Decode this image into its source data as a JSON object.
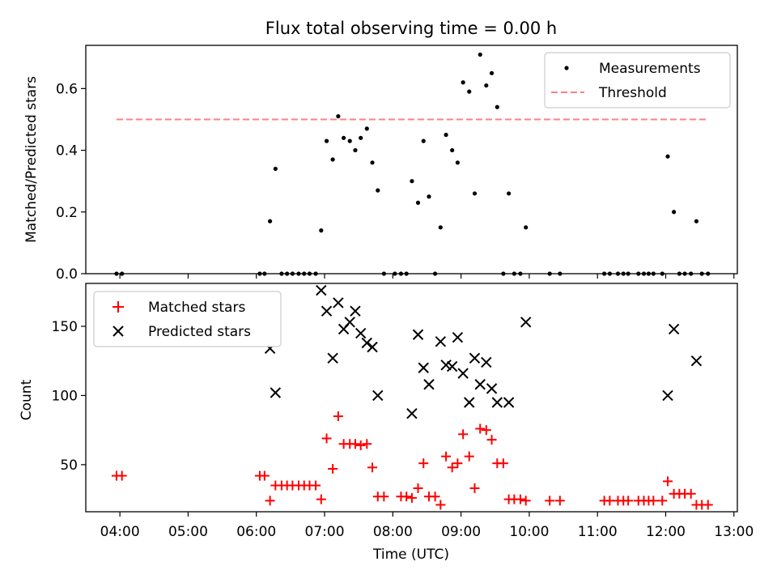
{
  "chart_data": [
    {
      "type": "scatter",
      "title": "Flux total observing time = 0.00 h",
      "xlabel": "",
      "ylabel": "Matched/Predicted stars",
      "xlim": [
        3.5,
        13.05
      ],
      "ylim": [
        0,
        0.74
      ],
      "yticks": [
        0.0,
        0.2,
        0.4,
        0.6
      ],
      "ytick_labels": [
        "0.0",
        "0.2",
        "0.4",
        "0.6"
      ],
      "legend_position": "top-right",
      "series": [
        {
          "name": "Measurements",
          "marker": "dot",
          "color": "#000000",
          "points": [
            [
              3.95,
              0
            ],
            [
              4.03,
              0
            ],
            [
              6.05,
              0
            ],
            [
              6.12,
              0
            ],
            [
              6.2,
              0.17
            ],
            [
              6.28,
              0.34
            ],
            [
              6.37,
              0
            ],
            [
              6.45,
              0
            ],
            [
              6.53,
              0
            ],
            [
              6.62,
              0
            ],
            [
              6.7,
              0
            ],
            [
              6.78,
              0
            ],
            [
              6.87,
              0
            ],
            [
              6.95,
              0.14
            ],
            [
              7.03,
              0.43
            ],
            [
              7.12,
              0.37
            ],
            [
              7.2,
              0.51
            ],
            [
              7.28,
              0.44
            ],
            [
              7.37,
              0.43
            ],
            [
              7.45,
              0.4
            ],
            [
              7.53,
              0.44
            ],
            [
              7.62,
              0.47
            ],
            [
              7.7,
              0.36
            ],
            [
              7.78,
              0.27
            ],
            [
              7.87,
              0
            ],
            [
              8.03,
              0
            ],
            [
              8.12,
              0
            ],
            [
              8.2,
              0
            ],
            [
              8.28,
              0.3
            ],
            [
              8.37,
              0.23
            ],
            [
              8.45,
              0.43
            ],
            [
              8.53,
              0.25
            ],
            [
              8.62,
              0
            ],
            [
              8.7,
              0.15
            ],
            [
              8.78,
              0.45
            ],
            [
              8.87,
              0.4
            ],
            [
              8.95,
              0.36
            ],
            [
              9.03,
              0.62
            ],
            [
              9.12,
              0.59
            ],
            [
              9.2,
              0.26
            ],
            [
              9.28,
              0.71
            ],
            [
              9.37,
              0.61
            ],
            [
              9.45,
              0.65
            ],
            [
              9.53,
              0.54
            ],
            [
              9.62,
              0
            ],
            [
              9.7,
              0.26
            ],
            [
              9.78,
              0
            ],
            [
              9.87,
              0
            ],
            [
              9.95,
              0.15
            ],
            [
              10.3,
              0
            ],
            [
              10.45,
              0
            ],
            [
              11.1,
              0
            ],
            [
              11.18,
              0
            ],
            [
              11.3,
              0
            ],
            [
              11.38,
              0
            ],
            [
              11.45,
              0
            ],
            [
              11.6,
              0
            ],
            [
              11.68,
              0
            ],
            [
              11.75,
              0
            ],
            [
              11.82,
              0
            ],
            [
              11.95,
              0
            ],
            [
              12.03,
              0.38
            ],
            [
              12.12,
              0.2
            ],
            [
              12.2,
              0
            ],
            [
              12.28,
              0
            ],
            [
              12.37,
              0
            ],
            [
              12.45,
              0.17
            ],
            [
              12.53,
              0
            ],
            [
              12.62,
              0
            ]
          ]
        },
        {
          "name": "Threshold",
          "style": "dashed",
          "color": "#ff8080",
          "points": [
            [
              3.95,
              0.5
            ],
            [
              12.62,
              0.5
            ]
          ]
        }
      ]
    },
    {
      "type": "scatter",
      "title": "",
      "xlabel": "Time (UTC)",
      "ylabel": "Count",
      "xlim": [
        3.5,
        13.05
      ],
      "ylim": [
        16,
        181
      ],
      "xticks": [
        4,
        5,
        6,
        7,
        8,
        9,
        10,
        11,
        12,
        13
      ],
      "xtick_labels": [
        "04:00",
        "05:00",
        "06:00",
        "07:00",
        "08:00",
        "09:00",
        "10:00",
        "11:00",
        "12:00",
        "13:00"
      ],
      "yticks": [
        50,
        100,
        150
      ],
      "ytick_labels": [
        "50",
        "100",
        "150"
      ],
      "legend_position": "top-left",
      "series": [
        {
          "name": "Matched stars",
          "marker": "plus",
          "color": "#ff0000",
          "points": [
            [
              3.95,
              42
            ],
            [
              4.03,
              42
            ],
            [
              6.05,
              42
            ],
            [
              6.12,
              42
            ],
            [
              6.2,
              24
            ],
            [
              6.28,
              35
            ],
            [
              6.37,
              35
            ],
            [
              6.45,
              35
            ],
            [
              6.53,
              35
            ],
            [
              6.62,
              35
            ],
            [
              6.7,
              35
            ],
            [
              6.78,
              35
            ],
            [
              6.87,
              35
            ],
            [
              6.95,
              25
            ],
            [
              7.03,
              69
            ],
            [
              7.12,
              47
            ],
            [
              7.2,
              85
            ],
            [
              7.28,
              65
            ],
            [
              7.37,
              65
            ],
            [
              7.45,
              65
            ],
            [
              7.53,
              64
            ],
            [
              7.62,
              65
            ],
            [
              7.7,
              48
            ],
            [
              7.78,
              27
            ],
            [
              7.87,
              27
            ],
            [
              8.12,
              27
            ],
            [
              8.2,
              27
            ],
            [
              8.28,
              26
            ],
            [
              8.37,
              33
            ],
            [
              8.45,
              51
            ],
            [
              8.53,
              27
            ],
            [
              8.62,
              27
            ],
            [
              8.7,
              21
            ],
            [
              8.78,
              56
            ],
            [
              8.87,
              48
            ],
            [
              8.95,
              51
            ],
            [
              9.03,
              72
            ],
            [
              9.12,
              56
            ],
            [
              9.2,
              33
            ],
            [
              9.28,
              76
            ],
            [
              9.37,
              75
            ],
            [
              9.45,
              68
            ],
            [
              9.53,
              51
            ],
            [
              9.62,
              51
            ],
            [
              9.7,
              25
            ],
            [
              9.78,
              25
            ],
            [
              9.87,
              25
            ],
            [
              9.95,
              24
            ],
            [
              10.3,
              24
            ],
            [
              10.45,
              24
            ],
            [
              11.1,
              24
            ],
            [
              11.18,
              24
            ],
            [
              11.3,
              24
            ],
            [
              11.38,
              24
            ],
            [
              11.45,
              24
            ],
            [
              11.6,
              24
            ],
            [
              11.68,
              24
            ],
            [
              11.75,
              24
            ],
            [
              11.82,
              24
            ],
            [
              11.95,
              24
            ],
            [
              12.03,
              38
            ],
            [
              12.12,
              29
            ],
            [
              12.2,
              29
            ],
            [
              12.28,
              29
            ],
            [
              12.37,
              29
            ],
            [
              12.45,
              21
            ],
            [
              12.53,
              21
            ],
            [
              12.62,
              21
            ]
          ]
        },
        {
          "name": "Predicted stars",
          "marker": "x",
          "color": "#000000",
          "points": [
            [
              6.2,
              134
            ],
            [
              6.28,
              102
            ],
            [
              6.95,
              176
            ],
            [
              7.03,
              161
            ],
            [
              7.12,
              127
            ],
            [
              7.2,
              167
            ],
            [
              7.28,
              148
            ],
            [
              7.37,
              153
            ],
            [
              7.45,
              161
            ],
            [
              7.53,
              145
            ],
            [
              7.62,
              138
            ],
            [
              7.7,
              135
            ],
            [
              7.78,
              100
            ],
            [
              8.28,
              87
            ],
            [
              8.37,
              144
            ],
            [
              8.45,
              120
            ],
            [
              8.53,
              108
            ],
            [
              8.7,
              139
            ],
            [
              8.78,
              122
            ],
            [
              8.87,
              121
            ],
            [
              8.95,
              142
            ],
            [
              9.03,
              116
            ],
            [
              9.12,
              95
            ],
            [
              9.2,
              127
            ],
            [
              9.28,
              108
            ],
            [
              9.37,
              124
            ],
            [
              9.45,
              105
            ],
            [
              9.53,
              95
            ],
            [
              9.7,
              95
            ],
            [
              9.95,
              153
            ],
            [
              12.03,
              100
            ],
            [
              12.12,
              148
            ],
            [
              12.45,
              125
            ]
          ]
        }
      ]
    }
  ]
}
